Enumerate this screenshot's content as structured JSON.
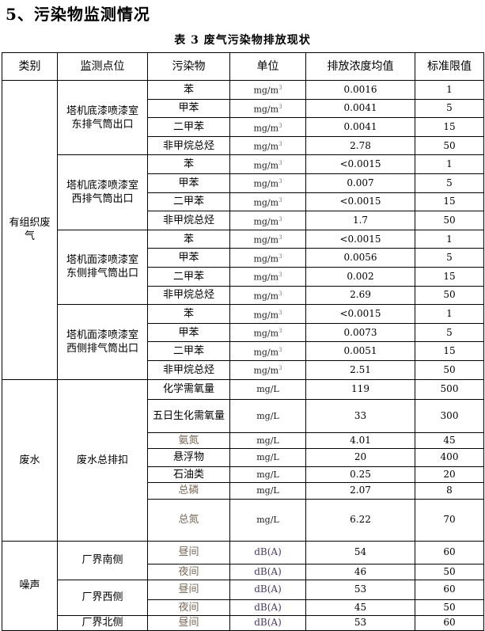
{
  "heading": "5、污染物监测情况",
  "caption": "表 3   废气污染物排放现状",
  "headers": [
    "类别",
    "监测点位",
    "污染物",
    "单位",
    "排放浓度均值",
    "标准限值"
  ],
  "groups": [
    {
      "category": "有组织废气",
      "points": [
        {
          "name": "塔机底漆喷漆室东排气筒出口",
          "rows": [
            {
              "pollutant": "苯",
              "unit": "mg/m",
              "unit_sup": "3",
              "value": "0.0016",
              "limit": "1"
            },
            {
              "pollutant": "甲苯",
              "unit": "mg/m",
              "unit_sup": "3",
              "value": "0.0041",
              "limit": "5"
            },
            {
              "pollutant": "二甲苯",
              "unit": "mg/m",
              "unit_sup": "3",
              "value": "0.0041",
              "limit": "15"
            },
            {
              "pollutant": "非甲烷总烃",
              "unit": "mg/m",
              "unit_sup": "3",
              "value": "2.78",
              "limit": "50"
            }
          ]
        },
        {
          "name": "塔机底漆喷漆室西排气筒出口",
          "rows": [
            {
              "pollutant": "苯",
              "unit": "mg/m",
              "unit_sup": "3",
              "value": "<0.0015",
              "limit": "1"
            },
            {
              "pollutant": "甲苯",
              "unit": "mg/m",
              "unit_sup": "3",
              "value": "0.007",
              "limit": "5"
            },
            {
              "pollutant": "二甲苯",
              "unit": "mg/m",
              "unit_sup": "3",
              "value": "<0.0015",
              "limit": "15"
            },
            {
              "pollutant": "非甲烷总烃",
              "unit": "mg/m",
              "unit_sup": "3",
              "value": "1.7",
              "limit": "50"
            }
          ]
        },
        {
          "name": "塔机面漆喷漆室东侧排气筒出口",
          "rows": [
            {
              "pollutant": "苯",
              "unit": "mg/m",
              "unit_sup": "3",
              "value": "<0.0015",
              "limit": "1"
            },
            {
              "pollutant": "甲苯",
              "unit": "mg/m",
              "unit_sup": "3",
              "value": "0.0056",
              "limit": "5"
            },
            {
              "pollutant": "二甲苯",
              "unit": "mg/m",
              "unit_sup": "3",
              "value": "0.002",
              "limit": "15"
            },
            {
              "pollutant": "非甲烷总烃",
              "unit": "mg/m",
              "unit_sup": "3",
              "value": "2.69",
              "limit": "50"
            }
          ]
        },
        {
          "name": "塔机面漆喷漆室西侧排气筒出口",
          "rows": [
            {
              "pollutant": "苯",
              "unit": "mg/m",
              "unit_sup": "3",
              "value": "<0.0015",
              "limit": "1"
            },
            {
              "pollutant": "甲苯",
              "unit": "mg/m",
              "unit_sup": "3",
              "value": "0.0073",
              "limit": "5"
            },
            {
              "pollutant": "二甲苯",
              "unit": "mg/m",
              "unit_sup": "3",
              "value": "0.0051",
              "limit": "15"
            },
            {
              "pollutant": "非甲烷总烃",
              "unit": "mg/m",
              "unit_sup": "3",
              "value": "2.51",
              "limit": "50"
            }
          ]
        }
      ]
    },
    {
      "category": "废水",
      "points": [
        {
          "name": "废水总排扣",
          "rows": [
            {
              "pollutant": "化学需氧量",
              "unit": "mg/L",
              "value": "119",
              "limit": "500"
            },
            {
              "pollutant": "五日生化需氧量",
              "unit": "mg/L",
              "value": "33",
              "limit": "300"
            },
            {
              "pollutant": "氨氮",
              "unit": "mg/L",
              "value": "4.01",
              "limit": "45",
              "faint": true
            },
            {
              "pollutant": "悬浮物",
              "unit": "mg/L",
              "value": "20",
              "limit": "400"
            },
            {
              "pollutant": "石油类",
              "unit": "mg/L",
              "value": "0.25",
              "limit": "20"
            },
            {
              "pollutant": "总磷",
              "unit": "mg/L",
              "value": "2.07",
              "limit": "8",
              "faint": true
            },
            {
              "pollutant": "总氮",
              "unit": "mg/L",
              "value": "6.22",
              "limit": "70",
              "faint": true
            }
          ]
        }
      ]
    },
    {
      "category": "噪声",
      "points": [
        {
          "name": "厂界南侧",
          "rows": [
            {
              "pollutant": "昼间",
              "unit": "dB(A)",
              "value": "54",
              "limit": "60",
              "faint": true
            },
            {
              "pollutant": "夜间",
              "unit": "dB(A)",
              "value": "46",
              "limit": "50",
              "faint": true
            }
          ]
        },
        {
          "name": "厂界西侧",
          "rows": [
            {
              "pollutant": "昼间",
              "unit": "dB(A)",
              "value": "53",
              "limit": "60",
              "faint": true
            },
            {
              "pollutant": "夜间",
              "unit": "dB(A)",
              "value": "45",
              "limit": "50",
              "faint": true
            }
          ]
        },
        {
          "name": "厂界北侧",
          "rows": [
            {
              "pollutant": "昼间",
              "unit": "dB(A)",
              "value": "53",
              "limit": "60",
              "faint": true
            }
          ]
        }
      ]
    }
  ]
}
